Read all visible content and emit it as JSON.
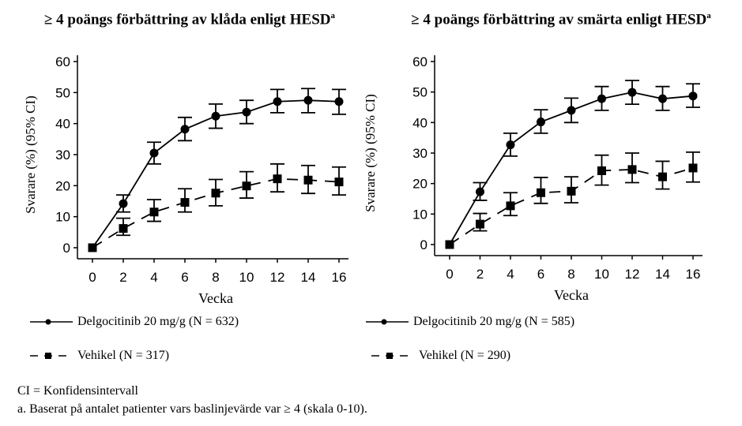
{
  "chart_data": [
    {
      "type": "line",
      "title": "≥ 4 poängs förbättring av klåda enligt HESD",
      "title_sup": "a",
      "xlabel": "Vecka",
      "ylabel": "Svarare (%) (95% CI)",
      "xlim": [
        0,
        16
      ],
      "ylim": [
        0,
        60
      ],
      "xticks": [
        0,
        2,
        4,
        6,
        8,
        10,
        12,
        14,
        16
      ],
      "yticks": [
        0,
        10,
        20,
        30,
        40,
        50,
        60
      ],
      "x": [
        0,
        2,
        4,
        6,
        8,
        10,
        12,
        14,
        16
      ],
      "series": [
        {
          "name": "Delgocitinib 20 mg/g (N = 632)",
          "marker": "circle",
          "line": "solid",
          "values": [
            0,
            14.2,
            30.5,
            38.2,
            42.4,
            43.7,
            47.1,
            47.5,
            47.1
          ],
          "ci_low": [
            0,
            11.5,
            27,
            34.5,
            38.5,
            40,
            43.5,
            43.5,
            43
          ],
          "ci_high": [
            0,
            17,
            34,
            42,
            46.3,
            47.5,
            51,
            51.3,
            51
          ]
        },
        {
          "name": "Vehikel (N = 317)",
          "marker": "square",
          "line": "dashed",
          "values": [
            0,
            6.2,
            11.5,
            14.6,
            17.6,
            19.9,
            22.2,
            21.8,
            21.2
          ],
          "ci_low": [
            0,
            4,
            8.5,
            11.5,
            13.5,
            16,
            18,
            17.5,
            17
          ],
          "ci_high": [
            0,
            9.5,
            15.5,
            19,
            22,
            24.5,
            27,
            26.5,
            26
          ]
        }
      ]
    },
    {
      "type": "line",
      "title": "≥ 4 poängs förbättring av smärta enligt HESD",
      "title_sup": "a",
      "xlabel": "Vecka",
      "ylabel": "Svarare (%) (95% CI)",
      "xlim": [
        0,
        16
      ],
      "ylim": [
        0,
        60
      ],
      "xticks": [
        0,
        2,
        4,
        6,
        8,
        10,
        12,
        14,
        16
      ],
      "yticks": [
        0,
        10,
        20,
        30,
        40,
        50,
        60
      ],
      "x": [
        0,
        2,
        4,
        6,
        8,
        10,
        12,
        14,
        16
      ],
      "series": [
        {
          "name": "Delgocitinib 20 mg/g (N = 585)",
          "marker": "circle",
          "line": "solid",
          "values": [
            0,
            17.3,
            32.7,
            40.2,
            44,
            47.8,
            49.9,
            47.8,
            48.7
          ],
          "ci_low": [
            0,
            14.5,
            29,
            36.5,
            40,
            44,
            46,
            44,
            45
          ],
          "ci_high": [
            0,
            20.3,
            36.5,
            44.2,
            48,
            51.8,
            53.8,
            51.8,
            52.7
          ]
        },
        {
          "name": "Vehikel (N = 290)",
          "marker": "square",
          "line": "dashed",
          "values": [
            0,
            6.7,
            12.7,
            17,
            17.5,
            24.2,
            24.6,
            22.2,
            25.1
          ],
          "ci_low": [
            0,
            4.5,
            9.5,
            13.5,
            13.7,
            19.5,
            20.3,
            18.2,
            20.5
          ],
          "ci_high": [
            0,
            10.2,
            17,
            22,
            22.2,
            29.3,
            30,
            27.3,
            30.3
          ]
        }
      ]
    }
  ],
  "footnotes": {
    "ci": "CI = Konfidensintervall",
    "a": "a.   Baserat på antalet patienter vars baslinjevärde var ≥ 4 (skala 0-10)."
  }
}
